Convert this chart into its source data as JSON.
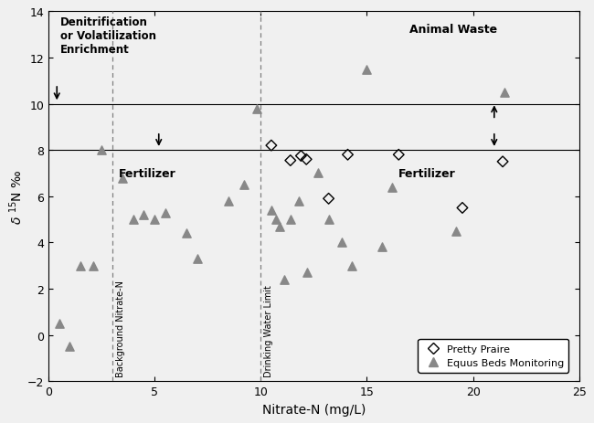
{
  "title": "",
  "xlabel": "Nitrate-N (mg/L)",
  "ylabel": "δ ¹⁵N ‰o",
  "xlim": [
    0,
    25
  ],
  "ylim": [
    -2,
    14
  ],
  "xticks": [
    0,
    5,
    10,
    15,
    20,
    25
  ],
  "yticks": [
    -2,
    0,
    2,
    4,
    6,
    8,
    10,
    12,
    14
  ],
  "hlines": [
    8.0,
    10.0
  ],
  "vlines_dashed": [
    3.0,
    10.0
  ],
  "vline_label_0": "Background Nitrate-N",
  "vline_label_1": "Drinking Water Limit",
  "pretty_prairie_x": [
    10.5,
    11.4,
    11.9,
    12.15,
    13.2,
    14.1,
    16.5,
    19.5,
    21.4
  ],
  "pretty_prairie_y": [
    8.2,
    7.55,
    7.75,
    7.6,
    5.9,
    7.8,
    7.8,
    5.5,
    7.5
  ],
  "equus_beds_x": [
    0.5,
    1.0,
    1.5,
    2.1,
    2.5,
    3.5,
    4.0,
    4.5,
    5.0,
    5.5,
    6.5,
    7.0,
    8.5,
    9.2,
    9.8,
    10.5,
    10.7,
    10.9,
    11.1,
    11.4,
    11.8,
    12.2,
    12.7,
    13.2,
    13.8,
    14.3,
    15.0,
    15.7,
    16.2,
    19.2,
    21.5
  ],
  "equus_beds_y": [
    0.5,
    -0.5,
    3.0,
    3.0,
    8.0,
    6.8,
    5.0,
    5.2,
    5.0,
    5.3,
    4.4,
    3.3,
    5.8,
    6.5,
    9.8,
    5.4,
    5.0,
    4.7,
    2.4,
    5.0,
    5.8,
    2.7,
    7.0,
    5.0,
    4.0,
    3.0,
    11.5,
    3.8,
    6.4,
    4.5,
    10.5
  ],
  "marker_color_equus": "#888888",
  "background_color": "#f0f0f0",
  "denitrif_text": "Denitrification\nor Volatilization\nEnrichment",
  "animal_waste_text": "Animal Waste",
  "fertilizer_text": "Fertilizer",
  "legend_label_pp": "Pretty Praire",
  "legend_label_eq": "Equus Beds Monitoring"
}
